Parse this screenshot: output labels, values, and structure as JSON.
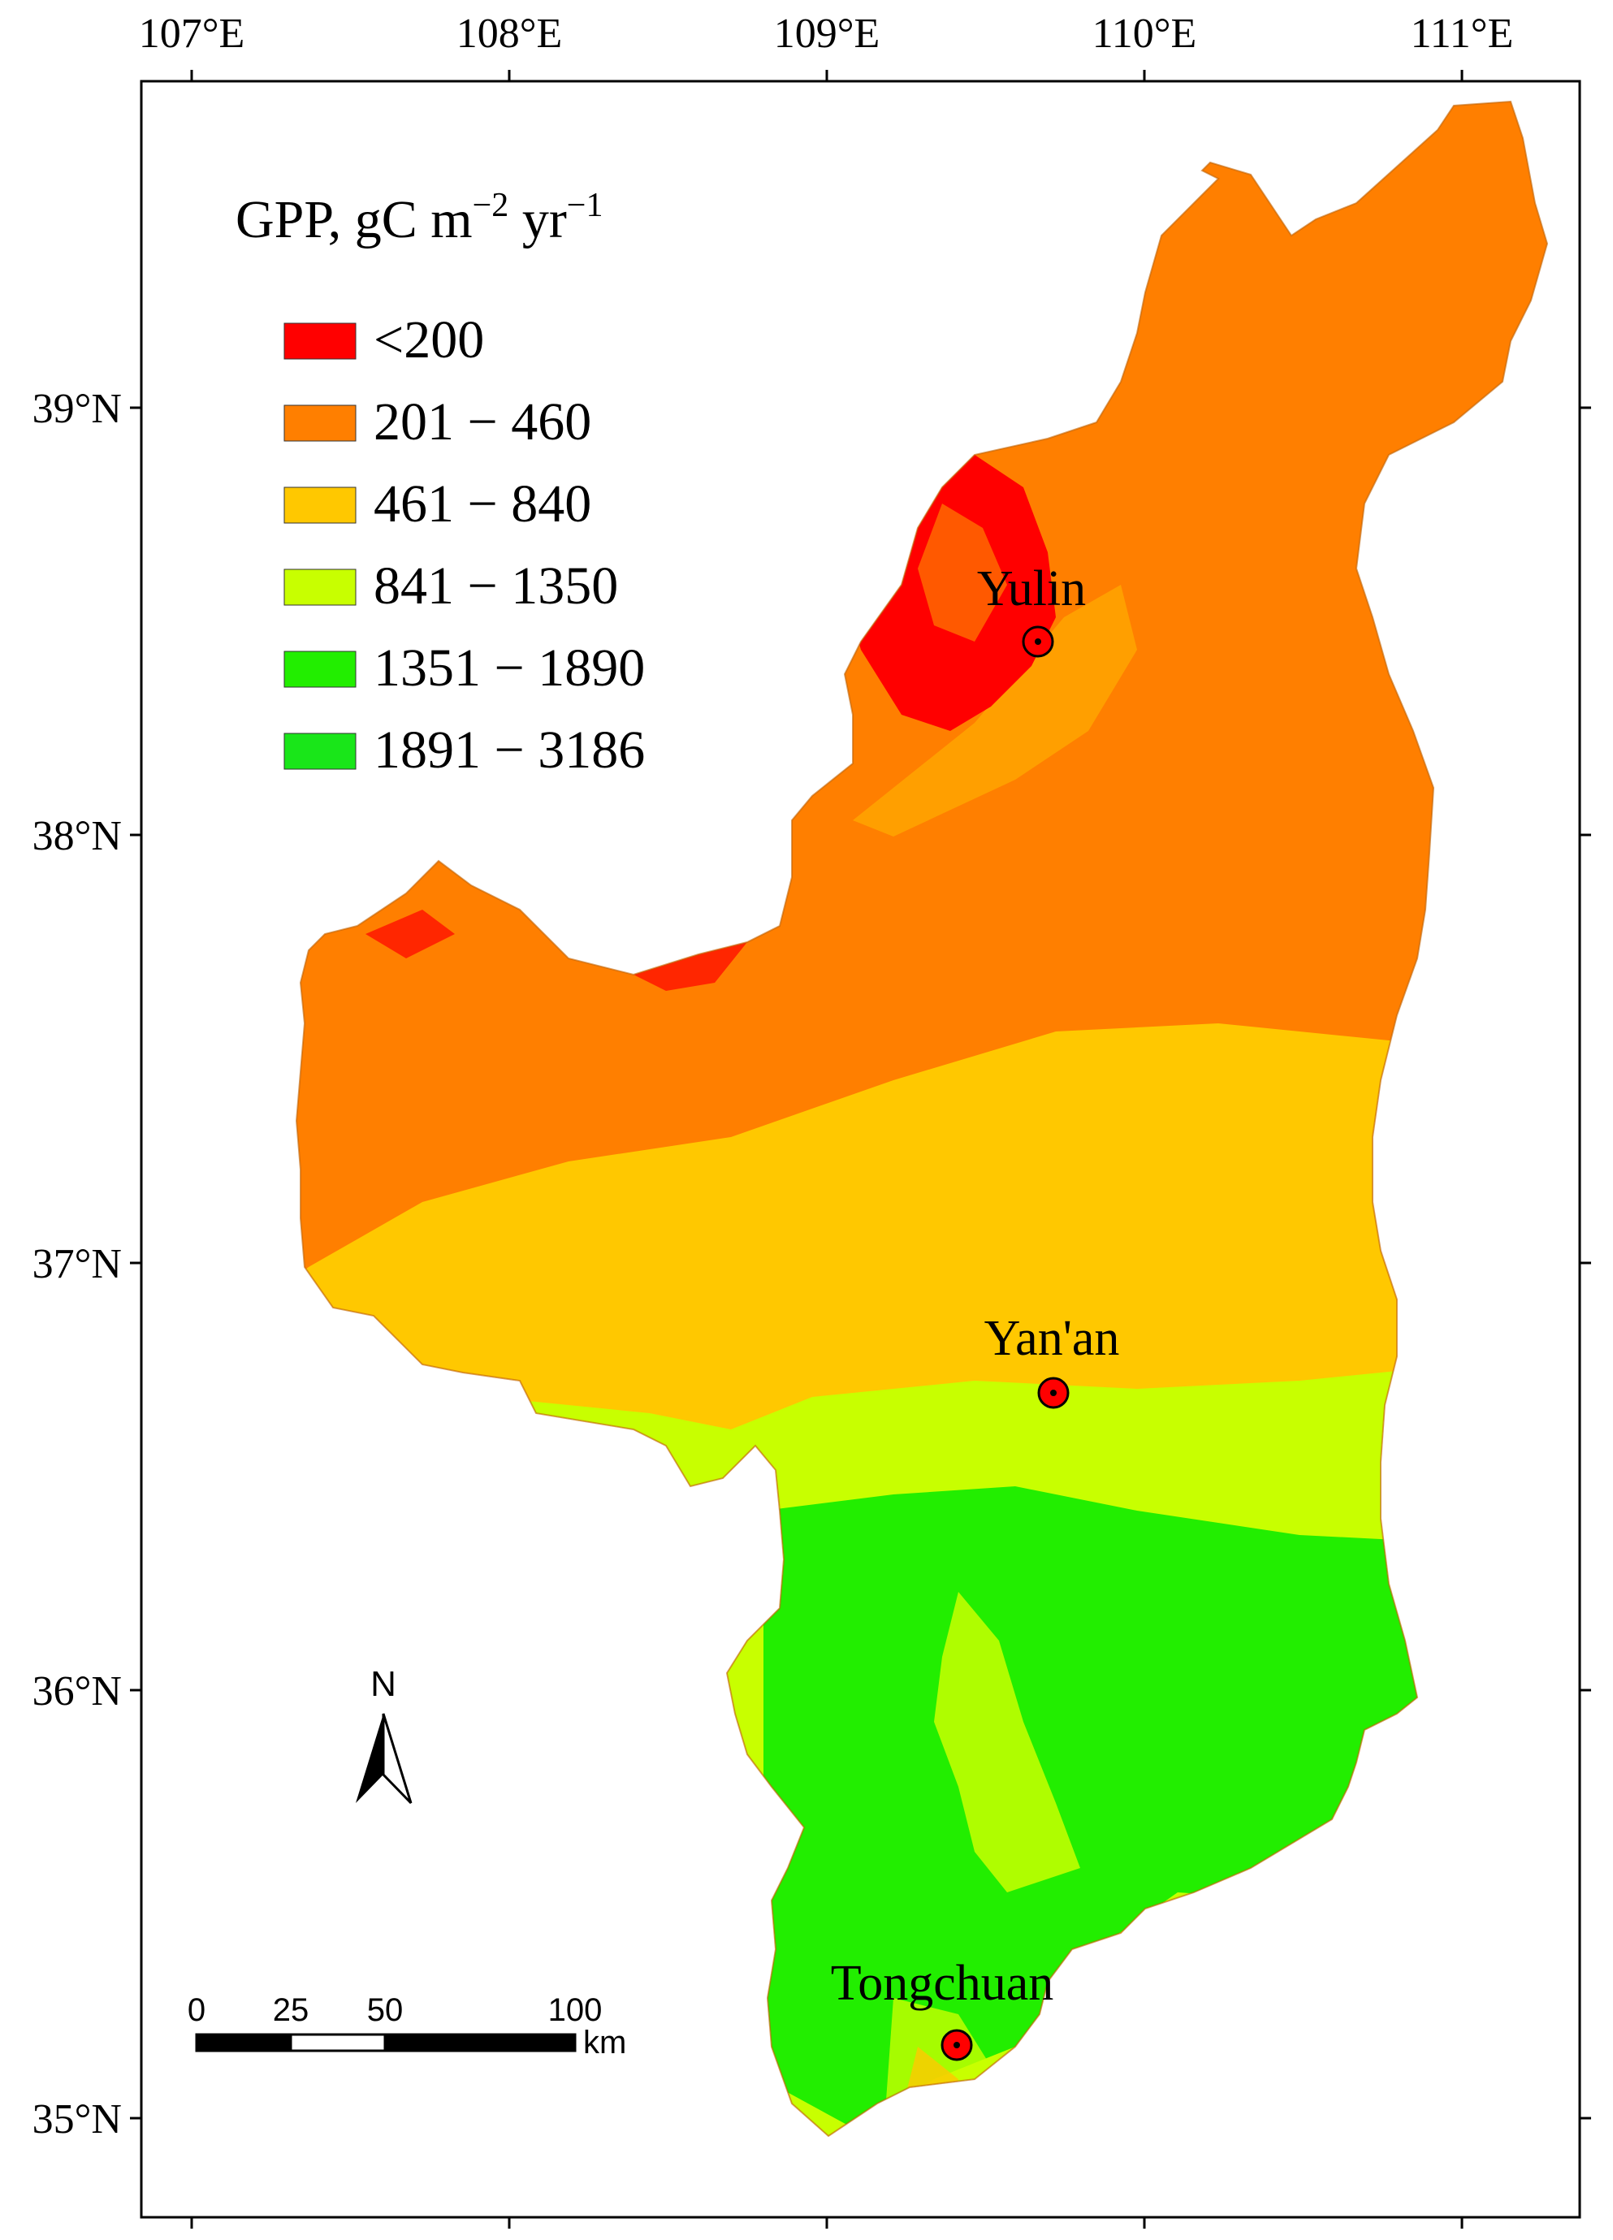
{
  "map": {
    "longitude_labels": [
      "107°E",
      "108°E",
      "109°E",
      "110°E",
      "111°E"
    ],
    "latitude_labels": [
      "39°N",
      "38°N",
      "37°N",
      "36°N",
      "35°N"
    ],
    "legend": {
      "title_main": "GPP, gC m",
      "title_exp1": "−2",
      "title_mid": " yr",
      "title_exp2": "−1",
      "items": [
        {
          "label": "<200",
          "color": "#ff0000"
        },
        {
          "label": "201 − 460",
          "color": "#ff7f00"
        },
        {
          "label": "461 − 840",
          "color": "#ffc800"
        },
        {
          "label": "841 − 1350",
          "color": "#c8ff00"
        },
        {
          "label": "1351 − 1890",
          "color": "#22ee00"
        },
        {
          "label": "1891 − 3186",
          "color": "#19e619"
        }
      ]
    },
    "cities": [
      {
        "name": "Yulin"
      },
      {
        "name": "Yan'an"
      },
      {
        "name": "Tongchuan"
      }
    ],
    "north_label": "N",
    "scale": {
      "labels": [
        "0",
        "25",
        "50",
        "100"
      ],
      "unit": "km"
    }
  }
}
